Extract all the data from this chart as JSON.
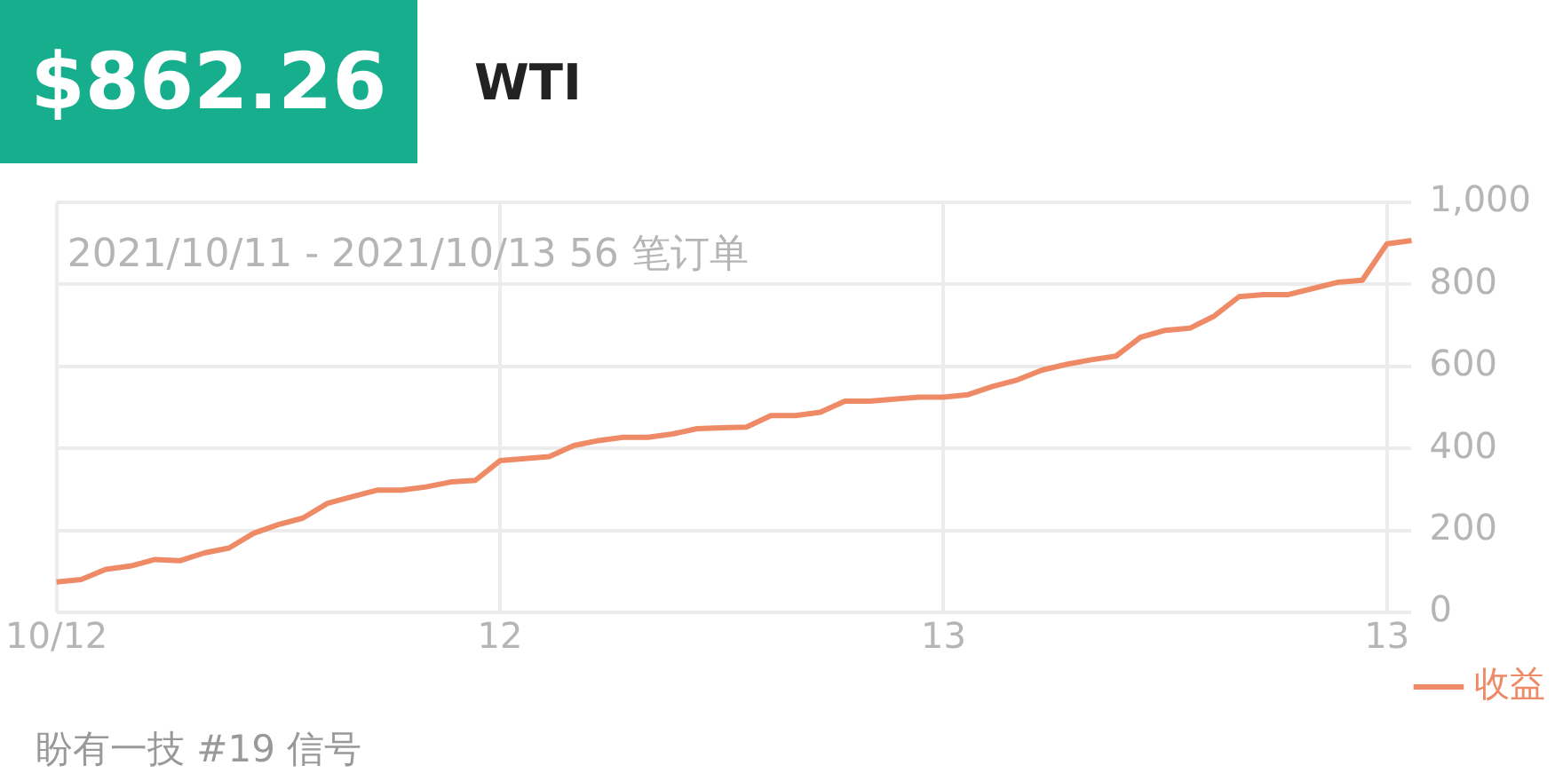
{
  "chart_data": {
    "type": "line",
    "title": "WTI",
    "annotations": [
      "$862.26",
      "2021/10/11 - 2021/10/13 56 笔订单",
      "盼有一技 #19 信号"
    ],
    "categories": [
      "10/12",
      null,
      null,
      null,
      null,
      null,
      null,
      null,
      null,
      null,
      null,
      null,
      null,
      null,
      null,
      null,
      null,
      null,
      "12",
      null,
      null,
      null,
      null,
      null,
      null,
      null,
      null,
      null,
      null,
      null,
      null,
      null,
      null,
      null,
      null,
      null,
      "13",
      null,
      null,
      null,
      null,
      null,
      null,
      null,
      null,
      null,
      null,
      null,
      null,
      null,
      null,
      null,
      null,
      null,
      "13",
      null
    ],
    "series": [
      {
        "name": "收益",
        "color": "#ee8a66",
        "values": [
          74,
          80,
          105,
          113,
          129,
          126,
          145,
          157,
          193,
          214,
          230,
          266,
          282,
          298,
          298,
          306,
          318,
          322,
          370,
          375,
          380,
          407,
          419,
          427,
          427,
          435,
          448,
          450,
          452,
          480,
          480,
          488,
          515,
          515,
          520,
          525,
          525,
          531,
          551,
          567,
          591,
          605,
          616,
          625,
          671,
          688,
          693,
          723,
          770,
          775,
          775,
          790,
          805,
          810,
          899,
          907
        ]
      }
    ],
    "ylim": [
      0,
      1000
    ],
    "yticks": [
      {
        "value": 0,
        "label": "0"
      },
      {
        "value": 200,
        "label": "200"
      },
      {
        "value": 400,
        "label": "400"
      },
      {
        "value": 600,
        "label": "600"
      },
      {
        "value": 800,
        "label": "800"
      },
      {
        "value": 1000,
        "label": "1,000"
      }
    ],
    "grid": true,
    "legend": "bottom right",
    "marker": "none",
    "line_style": "solid"
  }
}
